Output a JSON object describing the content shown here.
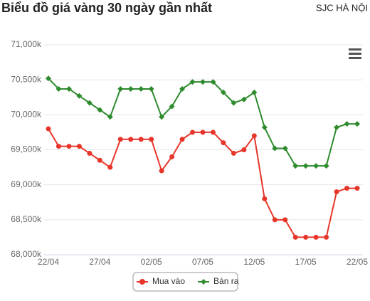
{
  "chart_data": {
    "type": "line",
    "title": "Biểu đồ giá vàng 30 ngày gần nhất",
    "subtitle": "SJC HÀ NỘI",
    "categories": [
      "22/04",
      null,
      null,
      null,
      null,
      "27/04",
      null,
      null,
      null,
      null,
      "02/05",
      null,
      null,
      null,
      null,
      "07/05",
      null,
      null,
      null,
      null,
      "12/05",
      null,
      null,
      null,
      null,
      "17/05",
      null,
      null,
      null,
      null,
      "22/05"
    ],
    "series": [
      {
        "name": "Mua vào",
        "color": "#e8352a",
        "marker": "circle",
        "values": [
          69800,
          69550,
          69550,
          69550,
          69450,
          69350,
          69250,
          69650,
          69650,
          69650,
          69650,
          69200,
          69400,
          69650,
          69750,
          69750,
          69750,
          69600,
          69450,
          69500,
          69700,
          68800,
          68500,
          68500,
          68250,
          68250,
          68250,
          68250,
          68900,
          68950,
          68950
        ]
      },
      {
        "name": "Bán ra",
        "color": "#2e8b2e",
        "marker": "diamond",
        "values": [
          70520,
          70370,
          70370,
          70270,
          70170,
          70070,
          69970,
          70370,
          70370,
          70370,
          70370,
          69970,
          70120,
          70370,
          70470,
          70470,
          70470,
          70320,
          70170,
          70220,
          70320,
          69820,
          69520,
          69520,
          69270,
          69270,
          69270,
          69270,
          69820,
          69870,
          69870
        ]
      }
    ],
    "ylim": [
      68000,
      71000
    ],
    "yticks": [
      {
        "value": 68000,
        "label": "68,000k"
      },
      {
        "value": 68500,
        "label": "68,500k"
      },
      {
        "value": 69000,
        "label": "69,000k"
      },
      {
        "value": 69500,
        "label": "69,500k"
      },
      {
        "value": 70000,
        "label": "70,000k"
      },
      {
        "value": 70500,
        "label": "70,500k"
      },
      {
        "value": 71000,
        "label": "71,000k"
      }
    ],
    "grid": true,
    "legend": "bottom"
  }
}
